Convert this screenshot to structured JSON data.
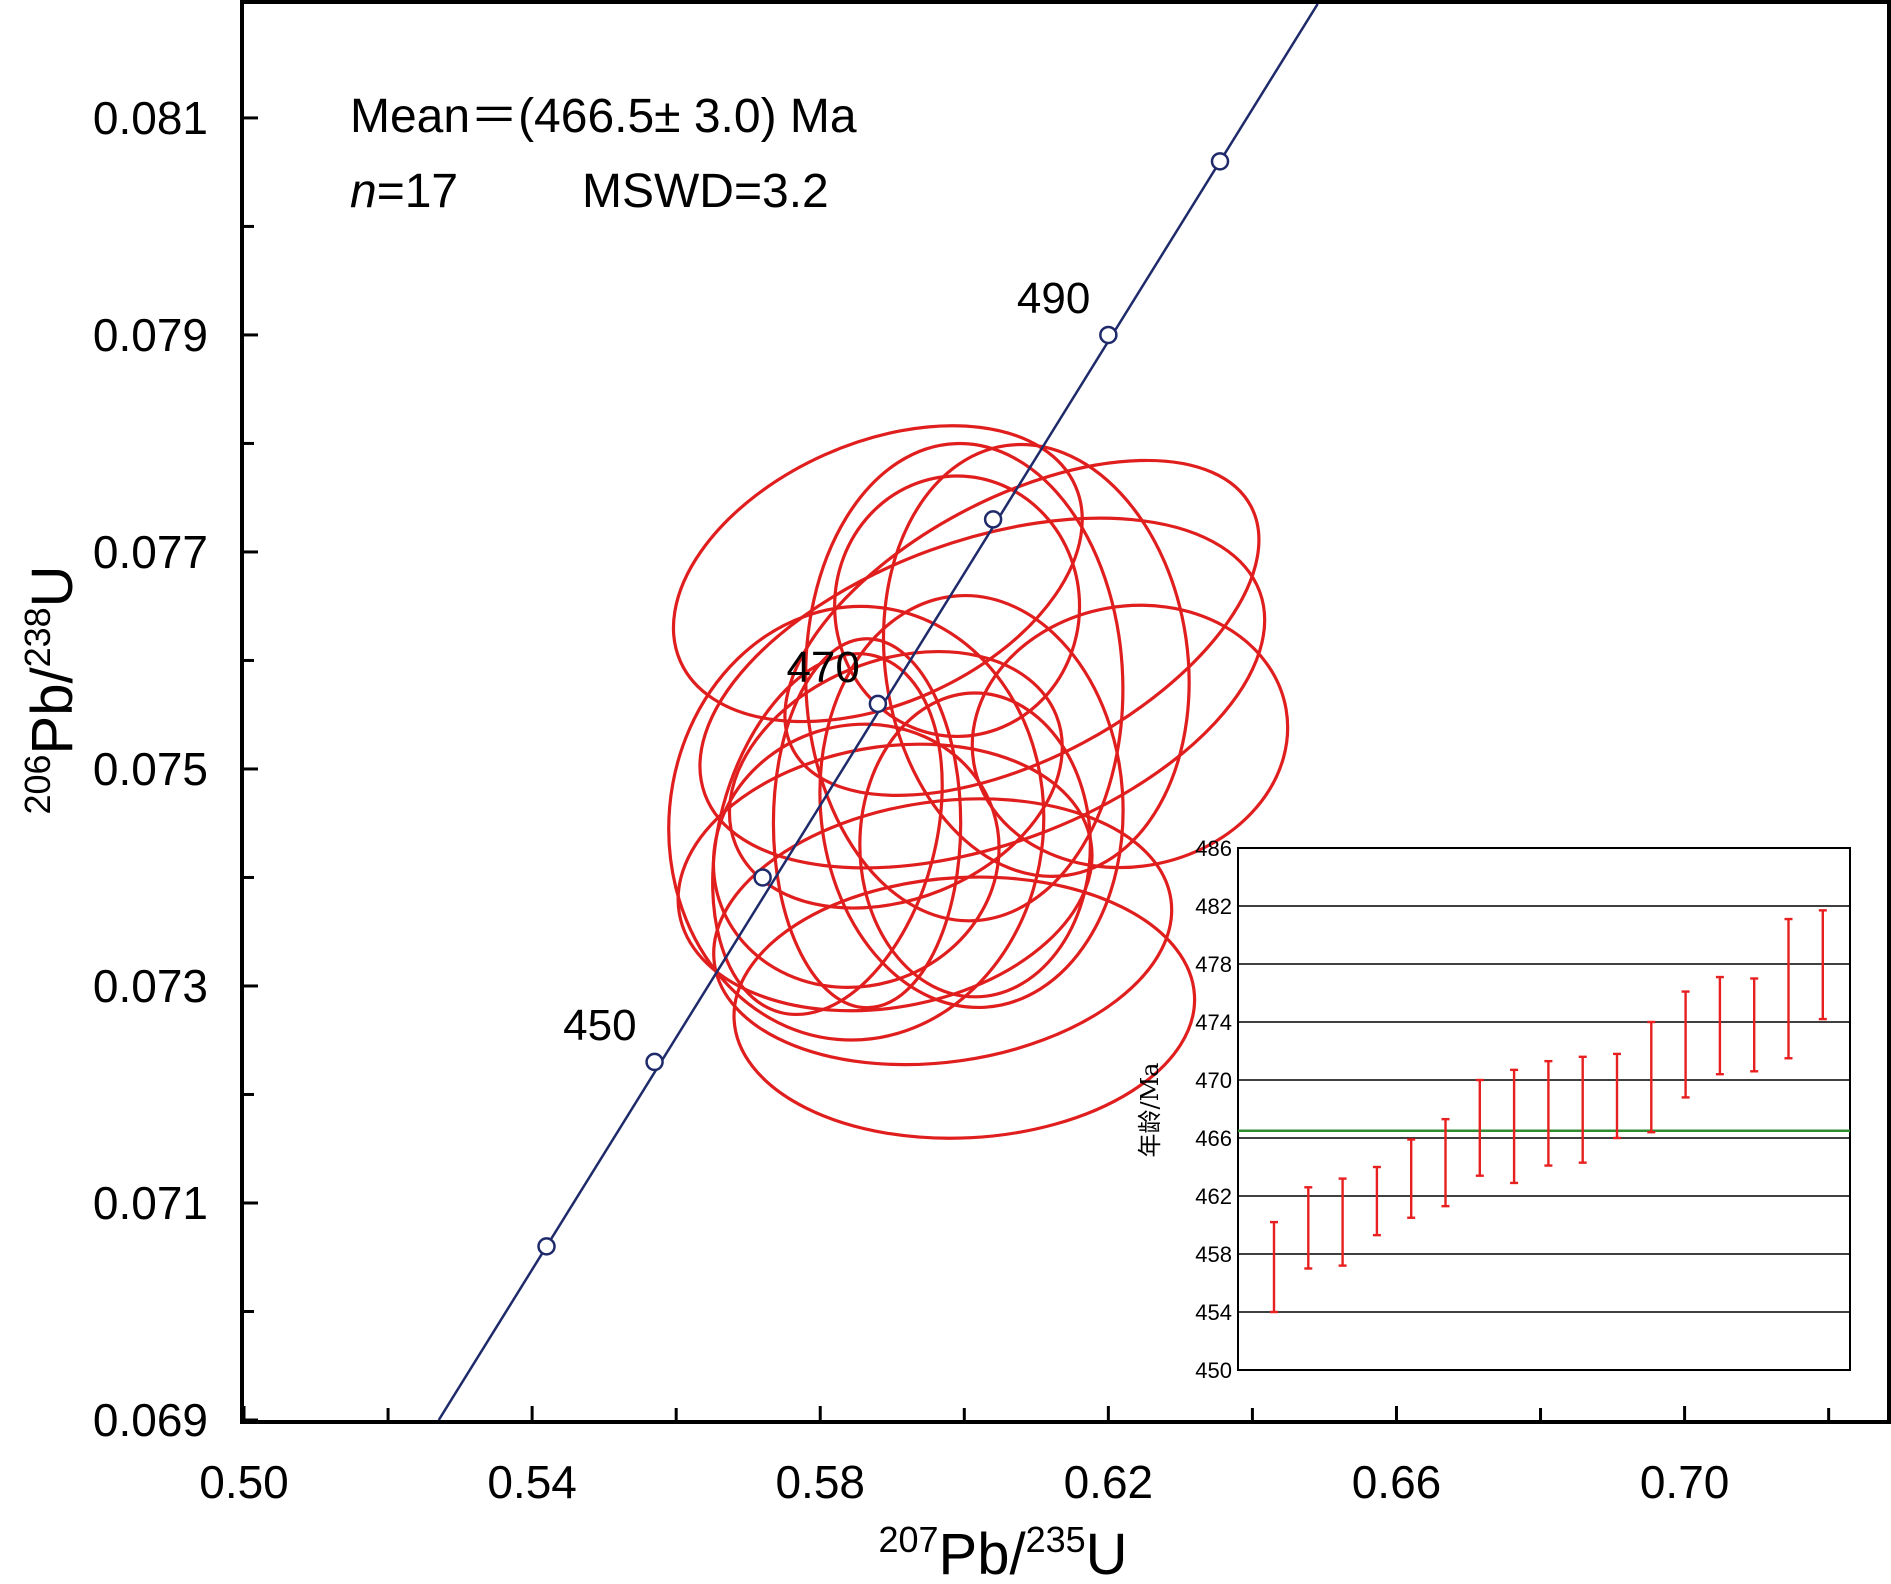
{
  "chart_data": [
    {
      "type": "scatter",
      "subtype": "concordia",
      "xlabel": {
        "sup": "207",
        "main": "Pb/",
        "sup2": "235",
        "tail": "U"
      },
      "ylabel": {
        "sup": "206",
        "main": "Pb/",
        "sup2": "238",
        "tail": "U"
      },
      "xlim": [
        0.5,
        0.7281
      ],
      "ylim": [
        0.069,
        0.08205
      ],
      "x_ticks": [
        "0.50",
        "0.54",
        "0.58",
        "0.62",
        "0.66",
        "0.70"
      ],
      "y_ticks": [
        "0.069",
        "0.071",
        "0.073",
        "0.075",
        "0.077",
        "0.079",
        "0.081"
      ],
      "stats": {
        "mean_line": "Mean＝(466.5± 3.0) Ma",
        "n_label": "n",
        "n_value": "=17",
        "mswd": "MSWD=3.2"
      },
      "concordia_markers": [
        {
          "age": 440,
          "x": 0.542,
          "y": 0.0706,
          "label": ""
        },
        {
          "age": 450,
          "x": 0.557,
          "y": 0.0723,
          "label": "450"
        },
        {
          "age": 460,
          "x": 0.572,
          "y": 0.074,
          "label": ""
        },
        {
          "age": 470,
          "x": 0.588,
          "y": 0.0756,
          "label": "470"
        },
        {
          "age": 480,
          "x": 0.604,
          "y": 0.0773,
          "label": ""
        },
        {
          "age": 490,
          "x": 0.62,
          "y": 0.079,
          "label": "490"
        },
        {
          "age": 500,
          "x": 0.6355,
          "y": 0.0806,
          "label": ""
        }
      ],
      "ellipses": [
        {
          "cx": 0.6025,
          "cy": 0.0757,
          "rx": 0.041,
          "ry": 0.0014,
          "angle": 20
        },
        {
          "cx": 0.608,
          "cy": 0.0763,
          "rx": 0.036,
          "ry": 0.0012,
          "angle": 28
        },
        {
          "cx": 0.588,
          "cy": 0.0768,
          "rx": 0.03,
          "ry": 0.0012,
          "angle": 24
        },
        {
          "cx": 0.61,
          "cy": 0.076,
          "rx": 0.021,
          "ry": 0.002,
          "angle": 8
        },
        {
          "cx": 0.6,
          "cy": 0.0758,
          "rx": 0.022,
          "ry": 0.0022,
          "angle": 2
        },
        {
          "cx": 0.599,
          "cy": 0.0765,
          "rx": 0.017,
          "ry": 0.0012,
          "angle": 0
        },
        {
          "cx": 0.585,
          "cy": 0.0745,
          "rx": 0.026,
          "ry": 0.002,
          "angle": -5
        },
        {
          "cx": 0.601,
          "cy": 0.0747,
          "rx": 0.021,
          "ry": 0.0019,
          "angle": 4
        },
        {
          "cx": 0.623,
          "cy": 0.0753,
          "rx": 0.022,
          "ry": 0.0012,
          "angle": 10
        },
        {
          "cx": 0.6015,
          "cy": 0.0743,
          "rx": 0.016,
          "ry": 0.0014,
          "angle": 0
        },
        {
          "cx": 0.589,
          "cy": 0.074,
          "rx": 0.029,
          "ry": 0.0012,
          "angle": 10
        },
        {
          "cx": 0.585,
          "cy": 0.0742,
          "rx": 0.02,
          "ry": 0.0012,
          "angle": 18
        },
        {
          "cx": 0.581,
          "cy": 0.0744,
          "rx": 0.015,
          "ry": 0.0017,
          "angle": -15
        },
        {
          "cx": 0.597,
          "cy": 0.0735,
          "rx": 0.032,
          "ry": 0.0012,
          "angle": 8
        },
        {
          "cx": 0.6,
          "cy": 0.0728,
          "rx": 0.032,
          "ry": 0.0012,
          "angle": 3
        },
        {
          "cx": 0.5865,
          "cy": 0.0745,
          "rx": 0.013,
          "ry": 0.0017,
          "angle": 0
        },
        {
          "cx": 0.5905,
          "cy": 0.0749,
          "rx": 0.024,
          "ry": 0.0011,
          "angle": 22
        }
      ]
    },
    {
      "type": "bar",
      "subtype": "error-bar",
      "ylabel": "年龄/Ma",
      "ylim": [
        450,
        486
      ],
      "y_ticks": [
        "450",
        "454",
        "458",
        "462",
        "466",
        "470",
        "474",
        "478",
        "482",
        "486"
      ],
      "weighted_mean": 466.5,
      "series": [
        {
          "low": 454.0,
          "high": 460.2
        },
        {
          "low": 457.0,
          "high": 462.6
        },
        {
          "low": 457.2,
          "high": 463.2
        },
        {
          "low": 459.3,
          "high": 464.0
        },
        {
          "low": 460.5,
          "high": 465.9
        },
        {
          "low": 461.3,
          "high": 467.3
        },
        {
          "low": 463.4,
          "high": 470.0
        },
        {
          "low": 462.9,
          "high": 470.7
        },
        {
          "low": 464.1,
          "high": 471.3
        },
        {
          "low": 464.3,
          "high": 471.6
        },
        {
          "low": 466.0,
          "high": 471.8
        },
        {
          "low": 466.4,
          "high": 474.0
        },
        {
          "low": 468.8,
          "high": 476.1
        },
        {
          "low": 470.4,
          "high": 477.1
        },
        {
          "low": 470.6,
          "high": 477.0
        },
        {
          "low": 471.5,
          "high": 481.1
        },
        {
          "low": 474.2,
          "high": 481.7
        }
      ],
      "colors": {
        "bars": "#e81f1f",
        "mean_line": "#2e8b2e",
        "grid": "#000000"
      }
    }
  ],
  "colors": {
    "ellipse": "#e01e1e",
    "concordia": "#1f2a6b",
    "axis": "#000000"
  }
}
